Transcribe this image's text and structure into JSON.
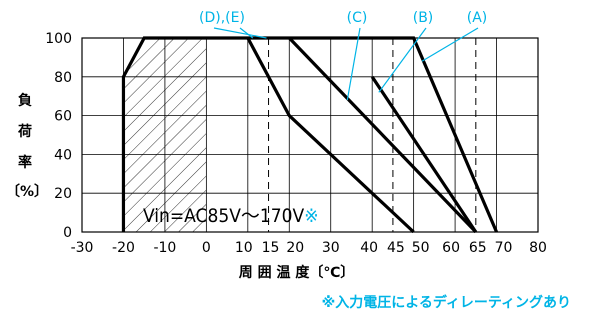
{
  "colors": {
    "accent": "#00b4e6",
    "ink": "#000000"
  },
  "chart_data": {
    "type": "line",
    "title": "",
    "ylabel_chars": [
      "負",
      "荷",
      "率"
    ],
    "yunit": "〔%〕",
    "xlabel": "周 囲 温 度〔℃〕",
    "xlim": [
      -30,
      80
    ],
    "ylim": [
      0,
      100
    ],
    "xticks": [
      -30,
      -20,
      -10,
      0,
      10,
      15,
      20,
      30,
      40,
      45,
      50,
      60,
      65,
      70,
      80
    ],
    "yticks": [
      0,
      20,
      40,
      60,
      80,
      100
    ],
    "dashed_x": [
      15,
      45,
      65
    ],
    "hatched_x_range": [
      -20,
      0
    ],
    "series": [
      {
        "name": "(A)",
        "x": [
          -20,
          -20,
          -15,
          50,
          70
        ],
        "y": [
          0,
          80,
          100,
          100,
          0
        ]
      },
      {
        "name": "(B)",
        "x": [
          40,
          65
        ],
        "y": [
          80,
          0
        ]
      },
      {
        "name": "(C)",
        "x": [
          20,
          65
        ],
        "y": [
          100,
          0
        ]
      },
      {
        "name": "(D),(E)",
        "x": [
          10,
          20,
          50
        ],
        "y": [
          100,
          60,
          0
        ]
      }
    ],
    "series_labels": [
      "(D),(E)",
      "(C)",
      "(B)",
      "(A)"
    ],
    "annotation": "Vin=AC85V～170V",
    "annotation_mark": "※",
    "footnote": "※入力電圧によるディレーティングあり"
  }
}
